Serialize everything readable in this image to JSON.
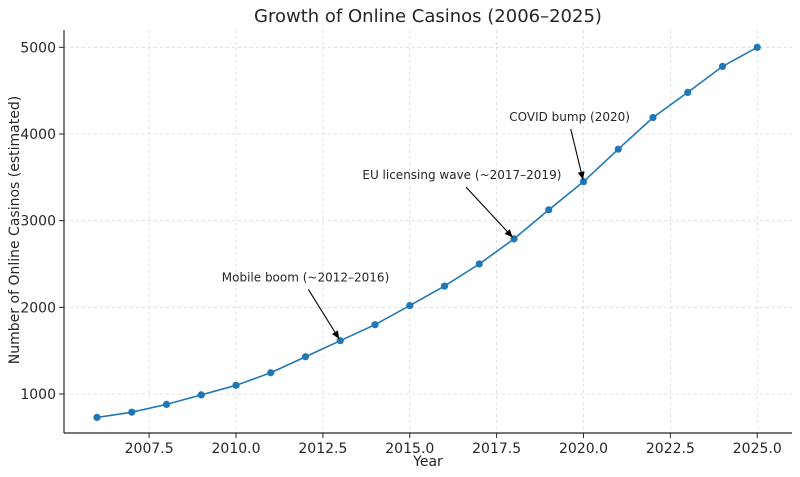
{
  "chart_data": {
    "type": "line",
    "title": "Growth of Online Casinos (2006–2025)",
    "xlabel": "Year",
    "ylabel": "Number of Online Casinos (estimated)",
    "xlim": [
      2005.05,
      2026.0
    ],
    "ylim": [
      550,
      5200
    ],
    "xticks": [
      2007.5,
      2010.0,
      2012.5,
      2015.0,
      2017.5,
      2020.0,
      2022.5,
      2025.0
    ],
    "xtick_labels": [
      "2007.5",
      "2010.0",
      "2012.5",
      "2015.0",
      "2017.5",
      "2020.0",
      "2022.5",
      "2025.0"
    ],
    "yticks": [
      1000,
      2000,
      3000,
      4000,
      5000
    ],
    "ytick_labels": [
      "1000",
      "2000",
      "3000",
      "4000",
      "5000"
    ],
    "grid": true,
    "series": [
      {
        "color": "#1f77b4",
        "x": [
          2006,
          2007,
          2008,
          2009,
          2010,
          2011,
          2012,
          2013,
          2014,
          2015,
          2016,
          2017,
          2018,
          2019,
          2020,
          2021,
          2022,
          2023,
          2024,
          2025
        ],
        "y": [
          730,
          790,
          880,
          990,
          1100,
          1245,
          1430,
          1615,
          1800,
          2020,
          2245,
          2500,
          2790,
          3125,
          3450,
          3825,
          4190,
          4480,
          4780,
          5000
        ]
      }
    ],
    "annotations": [
      {
        "text": "Mobile boom (~2012–2016)",
        "x": 2013,
        "y": 1615,
        "text_x": 2012.0,
        "text_y": 2300
      },
      {
        "text": "EU licensing wave (~2017–2019)",
        "x": 2018,
        "y": 2790,
        "text_x": 2016.5,
        "text_y": 3480
      },
      {
        "text": "COVID bump (2020)",
        "x": 2020,
        "y": 3450,
        "text_x": 2019.6,
        "text_y": 4150
      }
    ]
  }
}
